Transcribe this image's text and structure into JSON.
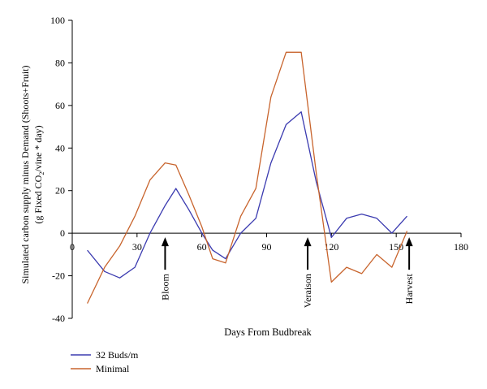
{
  "chart_data": {
    "type": "line",
    "xlabel": "Days From Budbreak",
    "ylabel_line1": "Simulated carbon supply minus Demand (Shoots+Fruit)",
    "ylabel_line2": {
      "pre": "(g Fixed CO",
      "sub": "2",
      "post": "/vine * day)"
    },
    "xlim": [
      0,
      180
    ],
    "ylim": [
      -40,
      100
    ],
    "xticks": [
      "0",
      "30",
      "60",
      "90",
      "120",
      "150",
      "180"
    ],
    "yticks": [
      "100",
      "80",
      "60",
      "40",
      "20",
      "0",
      "-20",
      "-40"
    ],
    "annotations": [
      {
        "label": "Bloom",
        "x": 43
      },
      {
        "label": "Veraison",
        "x": 109
      },
      {
        "label": "Harvest",
        "x": 156
      }
    ],
    "series": [
      {
        "name": "32 Buds/m",
        "color": "#3b3bb0",
        "points": [
          [
            7,
            -8
          ],
          [
            15,
            -18
          ],
          [
            22,
            -21
          ],
          [
            29,
            -16
          ],
          [
            36,
            0
          ],
          [
            43,
            13
          ],
          [
            48,
            21
          ],
          [
            54,
            11
          ],
          [
            60,
            0
          ],
          [
            65,
            -8
          ],
          [
            71,
            -12
          ],
          [
            78,
            0
          ],
          [
            85,
            7
          ],
          [
            92,
            33
          ],
          [
            99,
            51
          ],
          [
            106,
            57
          ],
          [
            113,
            24
          ],
          [
            120,
            -2
          ],
          [
            127,
            7
          ],
          [
            134,
            9
          ],
          [
            141,
            7
          ],
          [
            148,
            0
          ],
          [
            155,
            8
          ]
        ]
      },
      {
        "name": "Minimal",
        "color": "#c8642d",
        "points": [
          [
            7,
            -33
          ],
          [
            15,
            -16
          ],
          [
            22,
            -6
          ],
          [
            29,
            8
          ],
          [
            36,
            25
          ],
          [
            43,
            33
          ],
          [
            48,
            32
          ],
          [
            54,
            18
          ],
          [
            60,
            3
          ],
          [
            65,
            -12
          ],
          [
            71,
            -14
          ],
          [
            78,
            8
          ],
          [
            85,
            21
          ],
          [
            92,
            64
          ],
          [
            99,
            85
          ],
          [
            106,
            85
          ],
          [
            113,
            28
          ],
          [
            120,
            -23
          ],
          [
            127,
            -16
          ],
          [
            134,
            -19
          ],
          [
            141,
            -10
          ],
          [
            148,
            -16
          ],
          [
            155,
            1
          ]
        ]
      }
    ]
  }
}
